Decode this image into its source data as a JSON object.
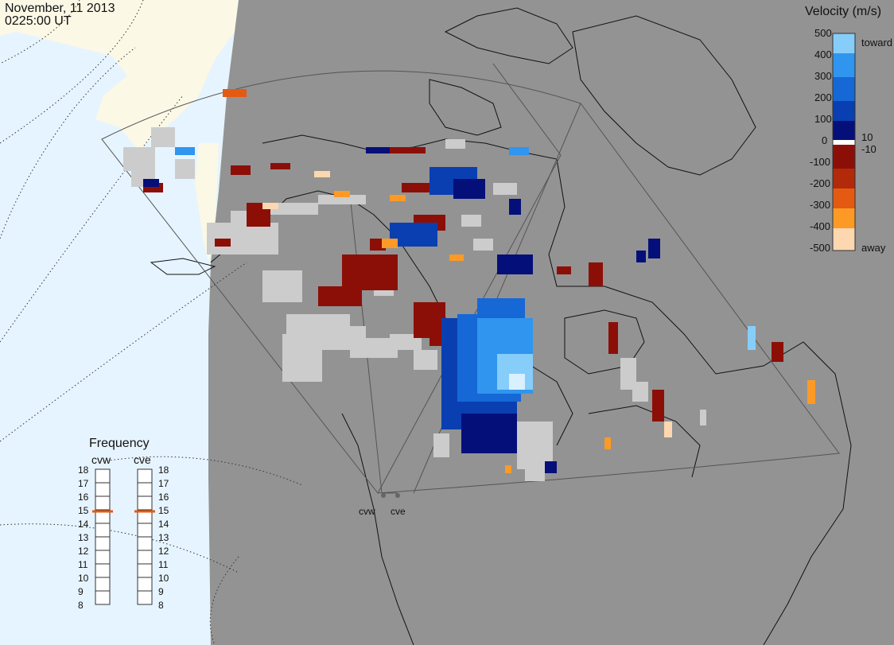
{
  "header": {
    "date": "November, 11 2013",
    "time": "0225:00 UT"
  },
  "colorbar": {
    "title": "Velocity (m/s)",
    "ticks": [
      "500",
      "400",
      "300",
      "200",
      "100",
      "10",
      "0",
      "-10",
      "-100",
      "-200",
      "-300",
      "-400",
      "-500"
    ],
    "toward_label": "toward",
    "away_label": "away"
  },
  "frequency": {
    "title": "Frequency",
    "left_label": "cvw",
    "right_label": "cve",
    "ticks": [
      "18",
      "17",
      "16",
      "15",
      "14",
      "13",
      "12",
      "11",
      "10",
      "9",
      "8"
    ],
    "cvw_value": 15,
    "cve_value": 15
  },
  "radars": {
    "cvw": "cvw",
    "cve": "cve"
  },
  "colors": {
    "ocean": "#e6f4ff",
    "daylight_land": "#fbf8e6",
    "night": "#939393",
    "ground_scatter": "#cccccc",
    "velocity_scale": [
      "#fdd7b0",
      "#fd9a26",
      "#e45a12",
      "#b12a0a",
      "#8c0f07",
      "#ffffff",
      "#050f7a",
      "#0a3fb2",
      "#1568d6",
      "#2f95ef",
      "#86cdfa",
      "#d9f0ff"
    ]
  }
}
